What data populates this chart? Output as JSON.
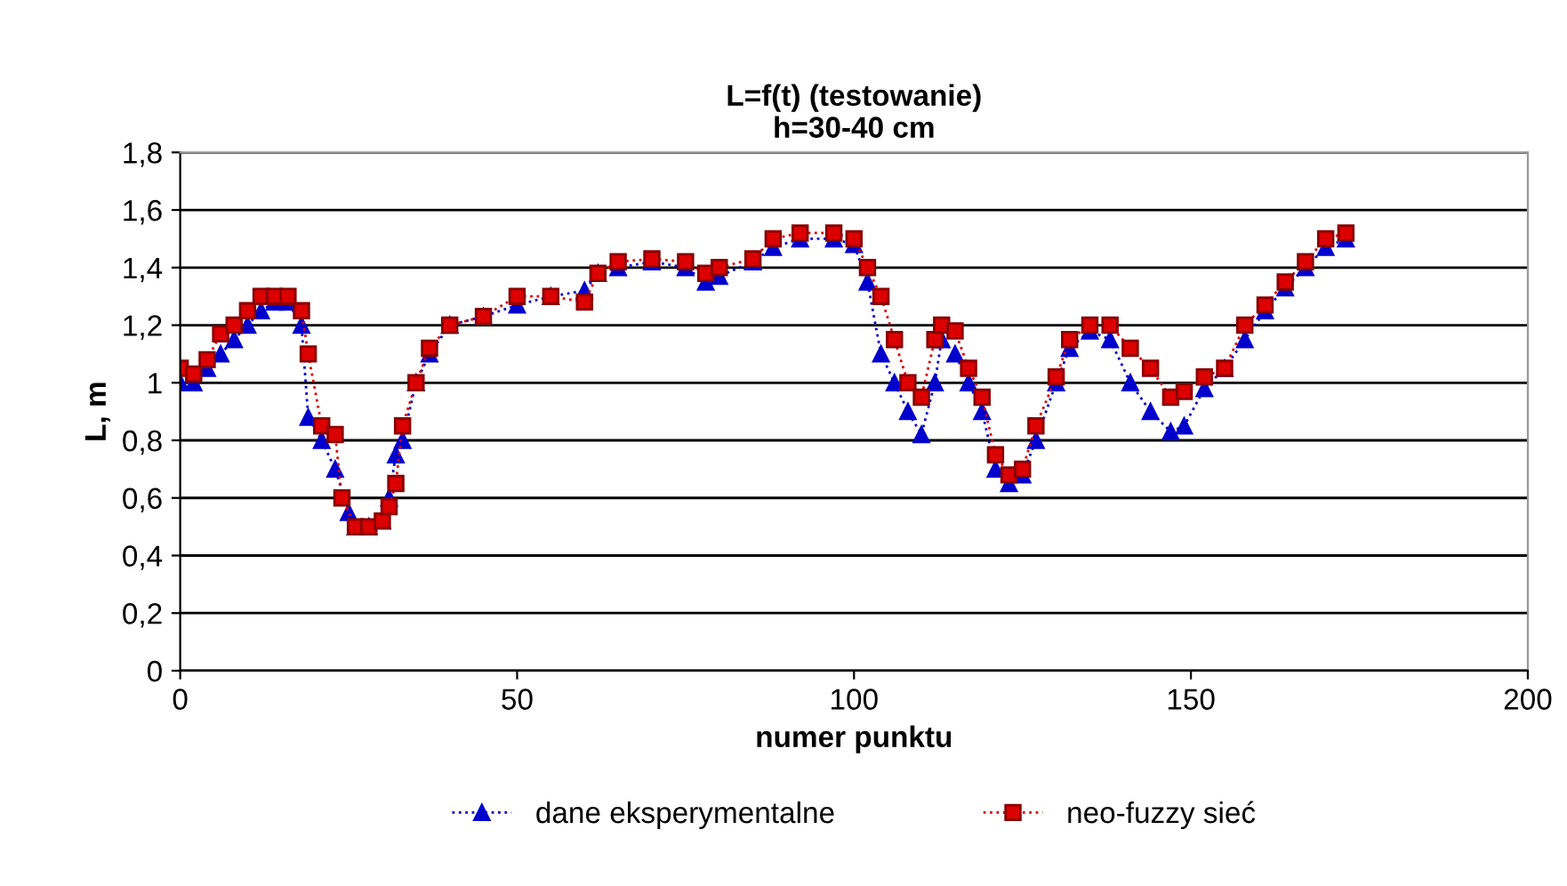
{
  "chart_data": {
    "type": "line",
    "title": "L=f(t) (testowanie)\nh=30-40 cm",
    "xlabel": "numer punktu",
    "ylabel": "L, m",
    "xlim": [
      0,
      200
    ],
    "xticks": [
      0,
      50,
      100,
      150,
      200
    ],
    "ylim": [
      0,
      1.8
    ],
    "yticks": [
      0,
      {
        "value": 0.2,
        "label": "0,2"
      },
      {
        "value": 0.4,
        "label": "0,4"
      },
      {
        "value": 0.6,
        "label": "0,6"
      },
      {
        "value": 0.8,
        "label": "0,8"
      },
      1,
      {
        "value": 1.2,
        "label": "1,2"
      },
      {
        "value": 1.4,
        "label": "1,4"
      },
      {
        "value": 1.6,
        "label": "1,6"
      },
      {
        "value": 1.8,
        "label": "1,8"
      }
    ],
    "grid": "y",
    "legend": "bottom",
    "line_style": "dotted",
    "series": [
      {
        "name": "dane eksperymentalne",
        "color": "#0000cc",
        "marker": "triangle",
        "x": [
          0,
          2,
          4,
          6,
          8,
          10,
          12,
          14,
          16,
          18,
          19,
          21,
          23,
          25,
          26,
          28,
          30,
          31,
          32,
          33,
          35,
          37,
          40,
          45,
          50,
          55,
          60,
          62,
          65,
          70,
          75,
          78,
          80,
          85,
          88,
          92,
          97,
          100,
          102,
          104,
          106,
          108,
          110,
          112,
          113,
          115,
          117,
          119,
          121,
          123,
          125,
          127,
          130,
          132,
          135,
          138,
          141,
          144,
          147,
          149,
          152,
          155,
          158,
          161,
          164,
          167,
          170,
          173
        ],
        "values": [
          1.0,
          1.0,
          1.05,
          1.1,
          1.15,
          1.2,
          1.25,
          1.28,
          1.28,
          1.2,
          0.88,
          0.8,
          0.7,
          0.55,
          0.5,
          0.5,
          0.52,
          0.6,
          0.75,
          0.8,
          1.0,
          1.1,
          1.2,
          1.23,
          1.27,
          1.3,
          1.32,
          1.38,
          1.4,
          1.42,
          1.4,
          1.35,
          1.37,
          1.42,
          1.47,
          1.5,
          1.5,
          1.48,
          1.35,
          1.1,
          1.0,
          0.9,
          0.82,
          1.0,
          1.15,
          1.1,
          1.0,
          0.9,
          0.7,
          0.65,
          0.68,
          0.8,
          1.0,
          1.12,
          1.18,
          1.15,
          1.0,
          0.9,
          0.83,
          0.85,
          0.98,
          1.05,
          1.15,
          1.25,
          1.33,
          1.4,
          1.47,
          1.5
        ]
      },
      {
        "name": "neo-fuzzy sieć",
        "color": "#dd0000",
        "marker": "square",
        "x": [
          0,
          2,
          4,
          6,
          8,
          10,
          12,
          14,
          16,
          18,
          19,
          21,
          23,
          24,
          26,
          28,
          30,
          31,
          32,
          33,
          35,
          37,
          40,
          45,
          50,
          55,
          60,
          62,
          65,
          70,
          75,
          78,
          80,
          85,
          88,
          92,
          97,
          100,
          102,
          104,
          106,
          108,
          110,
          112,
          113,
          115,
          117,
          119,
          121,
          123,
          125,
          127,
          130,
          132,
          135,
          138,
          141,
          144,
          147,
          149,
          152,
          155,
          158,
          161,
          164,
          167,
          170,
          173
        ],
        "values": [
          1.05,
          1.03,
          1.08,
          1.17,
          1.2,
          1.25,
          1.3,
          1.3,
          1.3,
          1.25,
          1.1,
          0.85,
          0.82,
          0.6,
          0.5,
          0.5,
          0.52,
          0.57,
          0.65,
          0.85,
          1.0,
          1.12,
          1.2,
          1.23,
          1.3,
          1.3,
          1.28,
          1.38,
          1.42,
          1.43,
          1.42,
          1.38,
          1.4,
          1.43,
          1.5,
          1.52,
          1.52,
          1.5,
          1.4,
          1.3,
          1.15,
          1.0,
          0.95,
          1.15,
          1.2,
          1.18,
          1.05,
          0.95,
          0.75,
          0.68,
          0.7,
          0.85,
          1.02,
          1.15,
          1.2,
          1.2,
          1.12,
          1.05,
          0.95,
          0.97,
          1.02,
          1.05,
          1.2,
          1.27,
          1.35,
          1.42,
          1.5,
          1.52
        ]
      }
    ]
  }
}
